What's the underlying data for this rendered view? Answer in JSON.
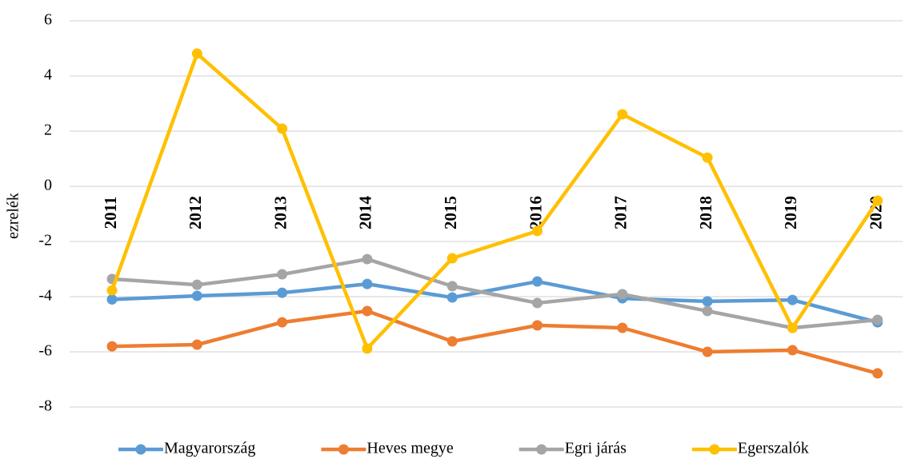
{
  "chart_data": {
    "type": "line",
    "y_label": "ezrelék",
    "categories": [
      "2011",
      "2012",
      "2013",
      "2014",
      "2015",
      "2016",
      "2017",
      "2018",
      "2019",
      "2020"
    ],
    "series": [
      {
        "name": "Magyarország",
        "color": "#5b9bd5",
        "values": [
          -4.1,
          -3.97,
          -3.86,
          -3.54,
          -4.03,
          -3.45,
          -4.06,
          -4.17,
          -4.12,
          -4.93
        ]
      },
      {
        "name": "Heves megye",
        "color": "#ed7d31",
        "values": [
          -5.8,
          -5.74,
          -4.93,
          -4.52,
          -5.62,
          -5.04,
          -5.13,
          -6.0,
          -5.94,
          -6.78
        ]
      },
      {
        "name": "Egri járás",
        "color": "#a5a5a5",
        "values": [
          -3.36,
          -3.57,
          -3.19,
          -2.64,
          -3.62,
          -4.23,
          -3.91,
          -4.52,
          -5.13,
          -4.84
        ]
      },
      {
        "name": "Egerszalók",
        "color": "#ffc000",
        "values": [
          -3.77,
          4.81,
          2.09,
          -5.88,
          -2.61,
          -1.62,
          2.61,
          1.04,
          -5.13,
          -0.52
        ]
      }
    ],
    "ylim": [
      -8,
      6
    ],
    "yticks": [
      -8,
      -6,
      -4,
      -2,
      0,
      2,
      4,
      6
    ],
    "grid": true,
    "legend": "bottom"
  }
}
